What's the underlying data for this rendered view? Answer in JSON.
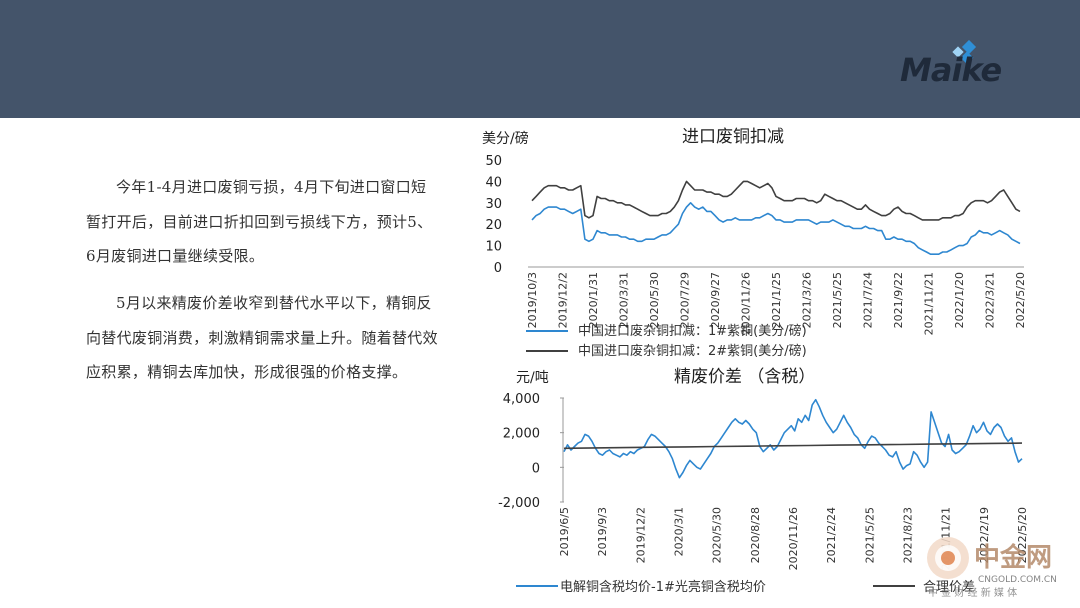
{
  "slide": {
    "paragraphs": [
      "今年1-4月进口废铜亏损，4月下旬进口窗口短暂打开后，目前进口折扣回到亏损线下方，预计5、6月废铜进口量继续受限。",
      "5月以来精废价差收窄到替代水平以下，精铜反向替代废铜消费，刺激精铜需求量上升。随着替代效应积累，精铜去库加快，形成很强的价格支撑。"
    ]
  },
  "logo": {
    "text": "Maike",
    "accent_color": "#2f8fd6",
    "text_color": "#1f2a3a"
  },
  "watermark": {
    "brand": "中金网",
    "url": "CNGOLD.COM.CN",
    "tagline": "中 金 财 经 新 媒 体"
  },
  "colors": {
    "header": "#44546a",
    "blue_series": "#2e87d0",
    "gray_series": "#404040"
  },
  "chart_data": [
    {
      "type": "line",
      "title": "进口废铜扣减",
      "ylabel": "美分/磅",
      "ylim": [
        0,
        50
      ],
      "yticks": [
        0,
        10,
        20,
        30,
        40,
        50
      ],
      "x_tick_labels": [
        "2019/10/3",
        "2019/12/2",
        "2020/1/31",
        "2020/3/31",
        "2020/5/30",
        "2020/7/29",
        "2020/9/27",
        "2020/11/26",
        "2021/1/25",
        "2021/3/26",
        "2021/5/25",
        "2021/7/24",
        "2021/9/22",
        "2021/11/21",
        "2022/1/20",
        "2022/3/21",
        "2022/5/20"
      ],
      "legend_position": "bottom",
      "series": [
        {
          "name": "中国进口废杂铜扣减：1#紫铜(美分/磅)",
          "color": "#2e87d0",
          "values": [
            22,
            24,
            25,
            27,
            28,
            28,
            28,
            27,
            27,
            26,
            25,
            26,
            27,
            13,
            12,
            13,
            17,
            16,
            16,
            15,
            15,
            15,
            14,
            14,
            13,
            13,
            12,
            12,
            13,
            13,
            13,
            14,
            15,
            15,
            16,
            18,
            20,
            25,
            28,
            30,
            28,
            27,
            28,
            26,
            26,
            24,
            22,
            21,
            22,
            22,
            23,
            22,
            22,
            22,
            22,
            23,
            23,
            24,
            25,
            24,
            22,
            22,
            21,
            21,
            21,
            22,
            22,
            22,
            22,
            21,
            20,
            21,
            21,
            21,
            22,
            21,
            20,
            19,
            19,
            18,
            18,
            18,
            19,
            18,
            18,
            17,
            17,
            13,
            13,
            14,
            13,
            13,
            12,
            12,
            11,
            9,
            8,
            7,
            6,
            6,
            6,
            7,
            7,
            8,
            9,
            10,
            10,
            11,
            14,
            15,
            17,
            16,
            16,
            15,
            16,
            17,
            16,
            15,
            13,
            12,
            11
          ]
        },
        {
          "name": "中国进口废杂铜扣减：2#紫铜(美分/磅)",
          "color": "#404040",
          "values": [
            31,
            33,
            35,
            37,
            38,
            38,
            38,
            37,
            37,
            36,
            36,
            37,
            38,
            24,
            23,
            24,
            33,
            32,
            32,
            31,
            31,
            30,
            30,
            29,
            29,
            28,
            27,
            26,
            25,
            24,
            24,
            24,
            25,
            25,
            26,
            28,
            31,
            36,
            40,
            38,
            36,
            36,
            36,
            35,
            35,
            34,
            34,
            33,
            33,
            34,
            36,
            38,
            40,
            40,
            39,
            38,
            37,
            38,
            39,
            37,
            33,
            32,
            31,
            31,
            31,
            32,
            32,
            32,
            31,
            31,
            30,
            31,
            34,
            33,
            32,
            31,
            31,
            30,
            29,
            28,
            27,
            27,
            29,
            27,
            26,
            25,
            24,
            24,
            25,
            27,
            28,
            26,
            25,
            25,
            24,
            23,
            22,
            22,
            22,
            22,
            22,
            23,
            23,
            23,
            24,
            24,
            25,
            28,
            30,
            31,
            31,
            31,
            30,
            31,
            33,
            35,
            36,
            33,
            30,
            27,
            26
          ]
        }
      ]
    },
    {
      "type": "line",
      "title": "精废价差 （含税）",
      "ylabel": "元/吨",
      "ylim": [
        -2000,
        4000
      ],
      "yticks": [
        -2000,
        0,
        2000,
        4000
      ],
      "ytick_labels": [
        "-2,000",
        "0",
        "2,000",
        "4,000"
      ],
      "x_tick_labels": [
        "2019/6/5",
        "2019/9/3",
        "2019/12/2",
        "2020/3/1",
        "2020/5/30",
        "2020/8/28",
        "2020/11/26",
        "2021/2/24",
        "2021/5/25",
        "2021/8/23",
        "2021/11/21",
        "2022/2/19",
        "2022/5/20"
      ],
      "legend_position": "bottom",
      "series": [
        {
          "name": "电解铜含税均价-1#光亮铜含税均价",
          "color": "#2e87d0",
          "values": [
            900,
            1300,
            1000,
            1200,
            1400,
            1500,
            1900,
            1800,
            1500,
            1100,
            800,
            700,
            900,
            1000,
            800,
            700,
            600,
            800,
            700,
            900,
            800,
            1000,
            1100,
            1200,
            1600,
            1900,
            1800,
            1600,
            1400,
            1200,
            900,
            500,
            -100,
            -600,
            -300,
            100,
            400,
            200,
            0,
            -100,
            200,
            500,
            800,
            1200,
            1400,
            1700,
            2000,
            2300,
            2600,
            2800,
            2600,
            2500,
            2700,
            2500,
            2200,
            2000,
            1200,
            900,
            1100,
            1300,
            1000,
            1200,
            1600,
            2000,
            2200,
            2400,
            2100,
            2800,
            2600,
            3000,
            2700,
            3600,
            3900,
            3500,
            3000,
            2600,
            2300,
            2000,
            2200,
            2600,
            3000,
            2600,
            2300,
            1900,
            1700,
            1300,
            1100,
            1500,
            1800,
            1700,
            1400,
            1200,
            1000,
            700,
            600,
            900,
            300,
            -100,
            100,
            200,
            900,
            700,
            300,
            0,
            300,
            3200,
            2600,
            2000,
            1400,
            1200,
            1900,
            1000,
            800,
            900,
            1100,
            1300,
            1800,
            2400,
            2000,
            2200,
            2600,
            2100,
            1900,
            2300,
            2500,
            2300,
            1800,
            1500,
            1700,
            900,
            300,
            500
          ]
        },
        {
          "name": "合理价差",
          "color": "#404040",
          "values": [
            1100,
            1120,
            1140,
            1160,
            1180,
            1200,
            1220,
            1240,
            1260,
            1280,
            1300,
            1320,
            1340,
            1360,
            1380,
            1400
          ]
        }
      ]
    }
  ]
}
